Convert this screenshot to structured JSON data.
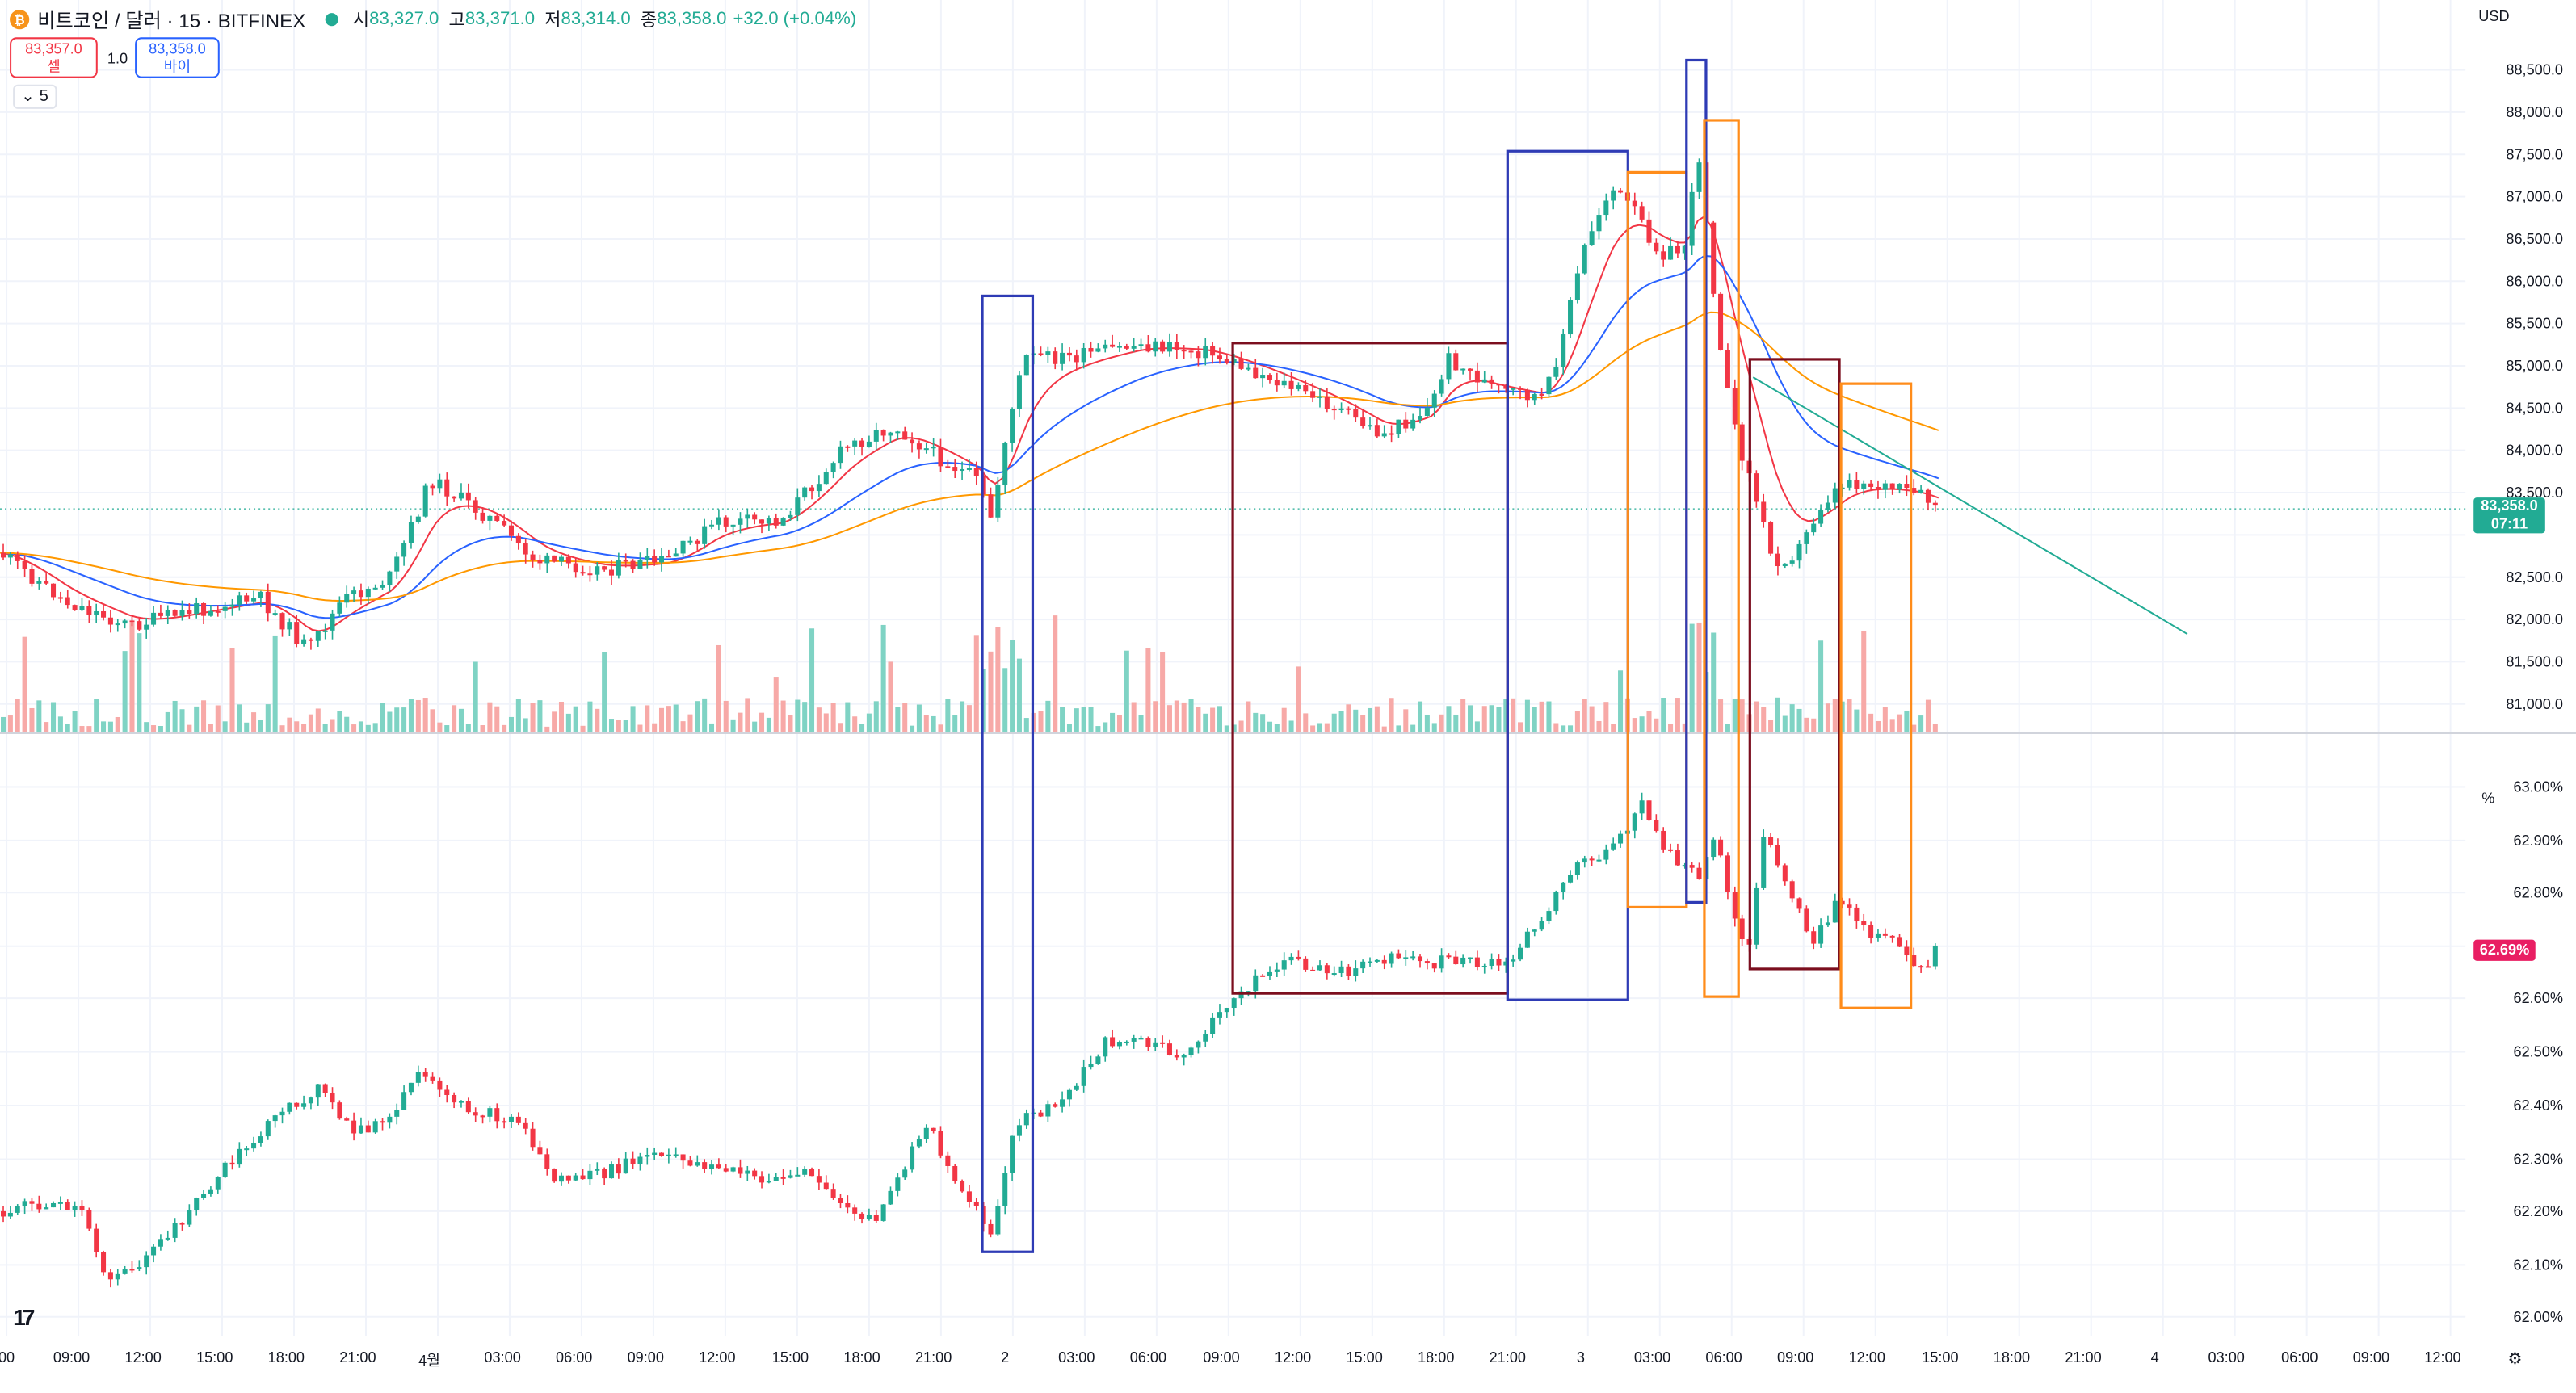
{
  "legend": {
    "symbol_icon": "bitcoin-icon",
    "symbol_text": "비트코인 / 달러 · 15 · BITFINEX",
    "market_status_icon": "market-open-dot-icon",
    "open_label": "시",
    "open_value": "83,327.0",
    "high_label": "고",
    "high_value": "83,371.0",
    "low_label": "저",
    "low_value": "83,314.0",
    "close_label": "종",
    "close_value": "83,358.0",
    "change": "+32.0 (+0.04%)"
  },
  "trade": {
    "sell_price": "83,357.0",
    "sell_label": "셀",
    "spread": "1.0",
    "buy_price": "83,358.0",
    "buy_label": "바이",
    "collapse_count": "5"
  },
  "price_axis": {
    "currency": "USD",
    "ticks": [
      "88,500.0",
      "88,000.0",
      "87,500.0",
      "87,000.0",
      "86,500.0",
      "86,000.0",
      "85,500.0",
      "85,000.0",
      "84,500.0",
      "84,000.0",
      "83,500.0",
      "82,500.0",
      "82,000.0",
      "81,500.0",
      "81,000.0"
    ],
    "current_price": "83,358.0",
    "countdown": "07:11"
  },
  "indicator_axis": {
    "unit": "%",
    "ticks": [
      "63.00%",
      "62.90%",
      "62.80%",
      "62.60%",
      "62.50%",
      "62.40%",
      "62.30%",
      "62.20%",
      "62.10%",
      "62.00%"
    ],
    "current_value": "62.69%"
  },
  "time_axis": [
    "00",
    "09:00",
    "12:00",
    "15:00",
    "18:00",
    "21:00",
    "4월",
    "03:00",
    "06:00",
    "09:00",
    "12:00",
    "15:00",
    "18:00",
    "21:00",
    "2",
    "03:00",
    "06:00",
    "09:00",
    "12:00",
    "15:00",
    "18:00",
    "21:00",
    "3",
    "03:00",
    "06:00",
    "09:00",
    "12:00",
    "15:00",
    "18:00",
    "21:00",
    "4",
    "03:00",
    "06:00",
    "09:00",
    "12:00"
  ],
  "colors": {
    "up": "#22ab94",
    "down": "#f23645",
    "ma_fast": "#f23645",
    "ma_mid": "#2962ff",
    "ma_slow": "#ff9800",
    "box_blue": "#2e3bb5",
    "box_maroon": "#7b0e1e",
    "box_orange": "#ff8c1a",
    "current_tag": "#22ab94",
    "indicator_tag": "#e91e63"
  },
  "icons": {
    "logo": "tradingview-logo-icon",
    "settings": "gear-icon"
  }
}
